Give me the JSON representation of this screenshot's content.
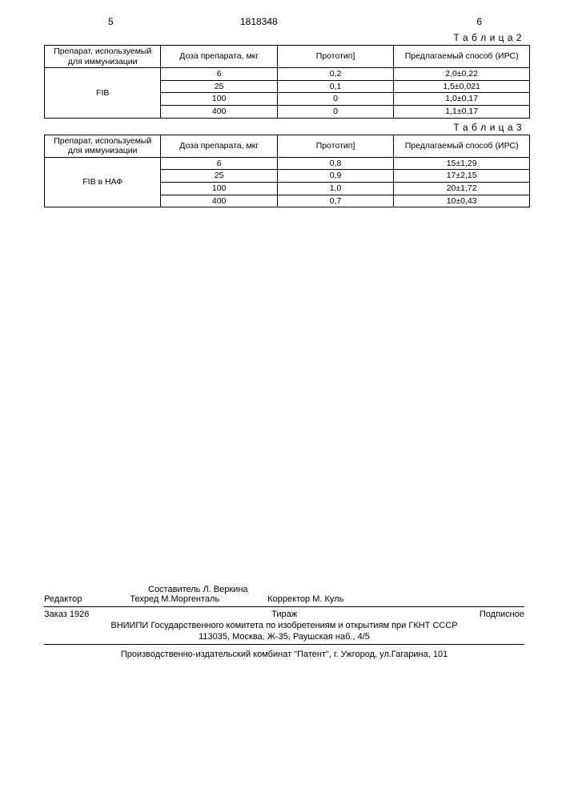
{
  "page_left": "5",
  "page_right": "6",
  "doc_id": "1818348",
  "tables": {
    "t2": {
      "caption": "Т а б л и ц а 2",
      "headers": [
        "Препарат, используемый для иммунизации",
        "Доза препарата, мкг",
        "Прототип]",
        "Предлагаемый способ (ИРС)"
      ],
      "prep": "FIB",
      "rows": [
        {
          "dose": "6",
          "proto": "0,2",
          "irs": "2,0±0,22"
        },
        {
          "dose": "25",
          "proto": "0,1",
          "irs": "1,5±0,021"
        },
        {
          "dose": "100",
          "proto": "0",
          "irs": "1,0±0,17"
        },
        {
          "dose": "400",
          "proto": "0",
          "irs": "1,1±0,17"
        }
      ]
    },
    "t3": {
      "caption": "Т а б л и ц а 3",
      "headers": [
        "Препарат, используемый для иммунизации",
        "Доза препарата, мкг",
        "Прототип]",
        "Предлагаемый способ (ИРС)"
      ],
      "prep": "FIB в НАФ",
      "rows": [
        {
          "dose": "6",
          "proto": "0,8",
          "irs": "15±1,29"
        },
        {
          "dose": "25",
          "proto": "0,9",
          "irs": "17±2,15"
        },
        {
          "dose": "100",
          "proto": "1,0",
          "irs": "20±1,72"
        },
        {
          "dose": "400",
          "proto": "0,7",
          "irs": "10±0,43"
        }
      ]
    }
  },
  "footer": {
    "compiler": "Составитель  Л. Веркина",
    "editor": "Редактор",
    "techred": "Техред М.Моргенталь",
    "corrector": "Корректор  М. Куль",
    "order": "Заказ 1926",
    "tirazh": "Тираж",
    "subscribe": "Подписное",
    "org": "ВНИИПИ Государственного комитета по изобретениям и открытиям при ГКНТ СССР",
    "address": "113035, Москва, Ж-35, Раушская наб., 4/5",
    "publisher": "Производственно-издательский комбинат \"Патент\", г. Ужгород, ул.Гагарина, 101"
  },
  "style": {
    "text_color": "#000000",
    "bg_color": "#ffffff",
    "border_color": "#000000",
    "font_size_body": 11,
    "font_size_table": 10.5,
    "col_widths_pct": [
      24,
      24,
      24,
      28
    ]
  }
}
